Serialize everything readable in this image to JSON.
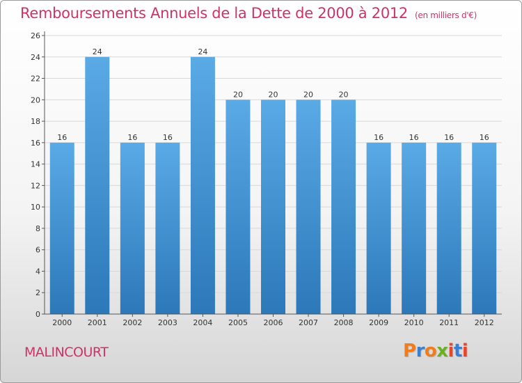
{
  "title": "Remboursements Annuels de la Dette de 2000 à 2012",
  "subtitle": "(en milliers d'€)",
  "commune": "MALINCOURT",
  "logo": {
    "text": "Proxiti",
    "letter_colors": [
      "#f07d1a",
      "#3b7fd0",
      "#f07d1a",
      "#6ab023",
      "#e8462b",
      "#3b7fd0",
      "#e8462b"
    ]
  },
  "colors": {
    "title": "#cc3366",
    "bar_top": "#5aaae6",
    "bar_bottom": "#2c78b9",
    "grid": "#d8d8d8",
    "axis": "#555555"
  },
  "chart_data": {
    "type": "bar",
    "categories": [
      "2000",
      "2001",
      "2002",
      "2003",
      "2004",
      "2005",
      "2006",
      "2007",
      "2008",
      "2009",
      "2010",
      "2011",
      "2012"
    ],
    "values": [
      16,
      24,
      16,
      16,
      24,
      20,
      20,
      20,
      20,
      16,
      16,
      16,
      16
    ],
    "data_labels": [
      "16",
      "24",
      "16",
      "16",
      "24",
      "20",
      "20",
      "20",
      "20",
      "16",
      "16",
      "16",
      "16"
    ],
    "yticks": [
      0,
      2,
      4,
      6,
      8,
      10,
      12,
      14,
      16,
      18,
      20,
      22,
      24,
      26
    ],
    "ylim": [
      0,
      26
    ],
    "grid": true,
    "xlabel": "",
    "ylabel": ""
  }
}
